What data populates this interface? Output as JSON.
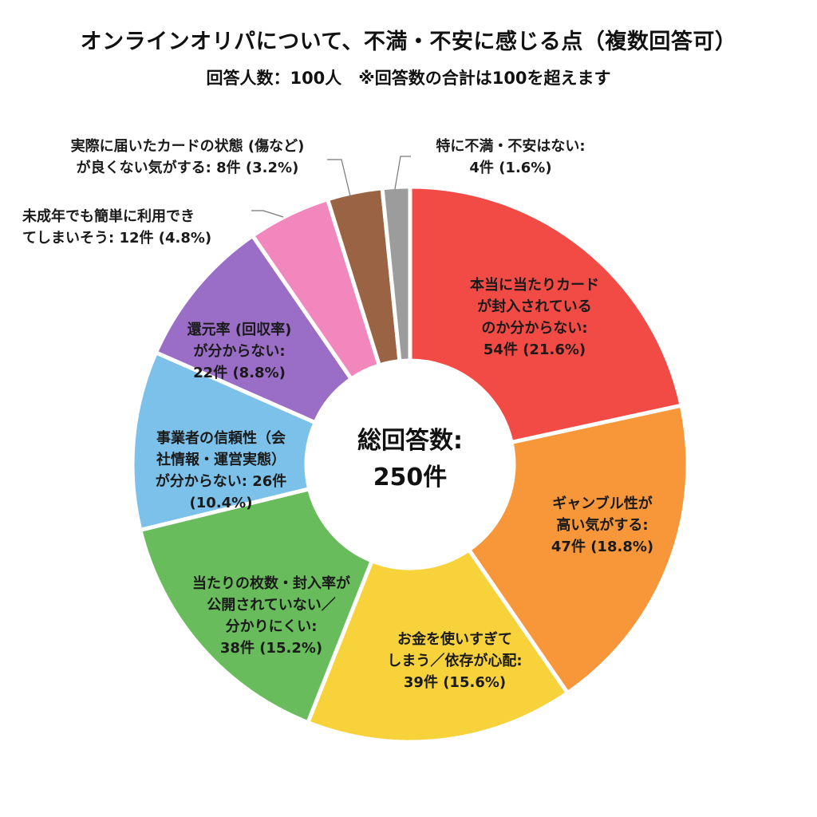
{
  "header": {
    "title": "オンラインオリパについて、不満・不安に感じる点（複数回答可）",
    "subtitle": "回答人数：100人　※回答数の合計は100を超えます"
  },
  "center": {
    "line1": "総回答数:",
    "line2": "250件"
  },
  "labels": {
    "s0": [
      "本当に当たりカード",
      "が封入されている",
      "のか分からない:",
      "54件 (21.6%)"
    ],
    "s1": [
      "ギャンブル性が",
      "高い気がする:",
      "47件 (18.8%)"
    ],
    "s2": [
      "お金を使いすぎて",
      "しまう／依存が心配:",
      "39件 (15.6%)"
    ],
    "s3": [
      "当たりの枚数・封入率が",
      "公開されていない／",
      "分かりにくい:",
      "38件 (15.2%)"
    ],
    "s4": [
      "事業者の信頼性（会",
      "社情報・運営実態）",
      "が分からない: 26件",
      "(10.4%)"
    ],
    "s5": [
      "還元率 (回収率)",
      "が分からない:",
      "22件 (8.8%)"
    ],
    "s6": [
      "未成年でも簡単に利用でき",
      "てしまいそう: 12件 (4.8%)"
    ],
    "s7": [
      "実際に届いたカードの状態 (傷など)",
      "が良くない気がする: 8件 (3.2%)"
    ],
    "s8": [
      "特に不満・不安はない:",
      "4件 (1.6%)"
    ]
  },
  "chart_data": {
    "type": "pie",
    "donut": true,
    "title": "オンラインオリパについて、不満・不安に感じる点（複数回答可）",
    "subtitle": "回答人数：100人　※回答数の合計は100を超えます",
    "center_text": "総回答数: 250件",
    "total": 250,
    "categories": [
      "本当に当たりカードが封入されているのか分からない",
      "ギャンブル性が高い気がする",
      "お金を使いすぎてしまう／依存が心配",
      "当たりの枚数・封入率が公開されていない／分かりにくい",
      "事業者の信頼性（会社情報・運営実態）が分からない",
      "還元率 (回収率) が分からない",
      "未成年でも簡単に利用できてしまいそう",
      "実際に届いたカードの状態 (傷など) が良くない気がする",
      "特に不満・不安はない"
    ],
    "values": [
      54,
      47,
      39,
      38,
      26,
      22,
      12,
      8,
      4
    ],
    "percentages": [
      21.6,
      18.8,
      15.6,
      15.2,
      10.4,
      8.8,
      4.8,
      3.2,
      1.6
    ],
    "colors": [
      "#f24b46",
      "#f7973a",
      "#f8d23a",
      "#69bc5c",
      "#7cc1ea",
      "#9a6ec6",
      "#f287bd",
      "#9a6343",
      "#9c9c9c"
    ],
    "unit": "件",
    "start_angle_deg": 0,
    "direction": "clockwise",
    "legend": "none (labels on slices)"
  }
}
